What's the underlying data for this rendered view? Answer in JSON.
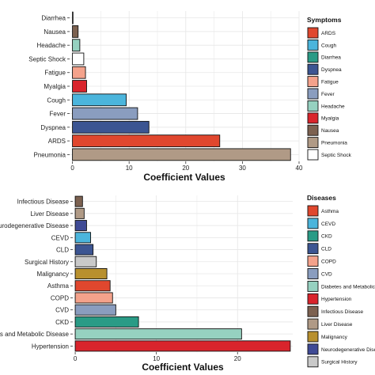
{
  "colors": {
    "panel_bg": "#ffffff",
    "grid": "#e6e6e6",
    "bar_stroke": "#111111"
  },
  "chart_data": [
    {
      "type": "bar",
      "orientation": "horizontal",
      "categories": [
        "Pneumonia",
        "ARDS",
        "Dyspnea",
        "Fever",
        "Cough",
        "Myalgia",
        "Fatigue",
        "Septic Shock",
        "Headache",
        "Nausea",
        "Diarrhea"
      ],
      "values": [
        38.5,
        26,
        13.5,
        11.5,
        9.5,
        2.5,
        2.3,
        2.0,
        1.3,
        1.0,
        0.1
      ],
      "bar_colors": [
        "#b09a86",
        "#e0472e",
        "#3c5592",
        "#8a9dbf",
        "#4bb5dc",
        "#d9242c",
        "#f4a28b",
        "#ffffff",
        "#96d1c0",
        "#7c6150",
        "#2a9b86"
      ],
      "xlabel": "Coefficient Values",
      "xticks": [
        0,
        10,
        20,
        30,
        40
      ],
      "xlim": [
        -0.5,
        40
      ],
      "grid": true,
      "legend": {
        "title": "Symptoms",
        "placement": "right",
        "entries": [
          {
            "label": "ARDS",
            "color": "#e0472e"
          },
          {
            "label": "Cough",
            "color": "#4bb5dc"
          },
          {
            "label": "Diarrhea",
            "color": "#2a9b86"
          },
          {
            "label": "Dyspnea",
            "color": "#3c5592"
          },
          {
            "label": "Fatigue",
            "color": "#f4a28b"
          },
          {
            "label": "Fever",
            "color": "#8a9dbf"
          },
          {
            "label": "Headache",
            "color": "#96d1c0"
          },
          {
            "label": "Myalgia",
            "color": "#d9242c"
          },
          {
            "label": "Nausea",
            "color": "#7c6150"
          },
          {
            "label": "Pneumonia",
            "color": "#b09a86"
          },
          {
            "label": "Septic Shock",
            "color": "#ffffff"
          }
        ]
      }
    },
    {
      "type": "bar",
      "orientation": "horizontal",
      "categories": [
        "Hypertension",
        "Diabetes and Metabolic Disease",
        "CKD",
        "CVD",
        "COPD",
        "Asthma",
        "Malignancy",
        "Surgical History",
        "CLD",
        "CEVD",
        "Neurodegenerative Disease",
        "Liver Disease",
        "Infectious Disease"
      ],
      "values": [
        26.5,
        20.5,
        7.8,
        5.0,
        4.6,
        4.3,
        3.9,
        2.6,
        2.2,
        1.9,
        1.4,
        1.1,
        0.9
      ],
      "bar_colors": [
        "#d9242c",
        "#96d1c0",
        "#2a9b86",
        "#8a9dbf",
        "#f4a28b",
        "#e0472e",
        "#b8902e",
        "#c9c9c9",
        "#3c5592",
        "#4bb5dc",
        "#3f4a95",
        "#b09a86",
        "#7c6150"
      ],
      "xlabel": "Coefficient Values",
      "xticks": [
        0,
        10,
        20
      ],
      "xlim": [
        -0.3,
        26.8
      ],
      "grid": true,
      "legend": {
        "title": "Diseases",
        "placement": "right",
        "entries": [
          {
            "label": "Asthma",
            "color": "#e0472e"
          },
          {
            "label": "CEVD",
            "color": "#4bb5dc"
          },
          {
            "label": "CKD",
            "color": "#2a9b86"
          },
          {
            "label": "CLD",
            "color": "#3c5592"
          },
          {
            "label": "COPD",
            "color": "#f4a28b"
          },
          {
            "label": "CVD",
            "color": "#8a9dbf"
          },
          {
            "label": "Diabetes and Metabolic D",
            "color": "#96d1c0"
          },
          {
            "label": "Hypertension",
            "color": "#d9242c"
          },
          {
            "label": "Infectious Disease",
            "color": "#7c6150"
          },
          {
            "label": "Liver Disease",
            "color": "#b09a86"
          },
          {
            "label": "Malignancy",
            "color": "#b8902e"
          },
          {
            "label": "Neurodegenerative Disea",
            "color": "#3f4a95"
          },
          {
            "label": "Surgical History",
            "color": "#c9c9c9"
          }
        ]
      }
    }
  ]
}
